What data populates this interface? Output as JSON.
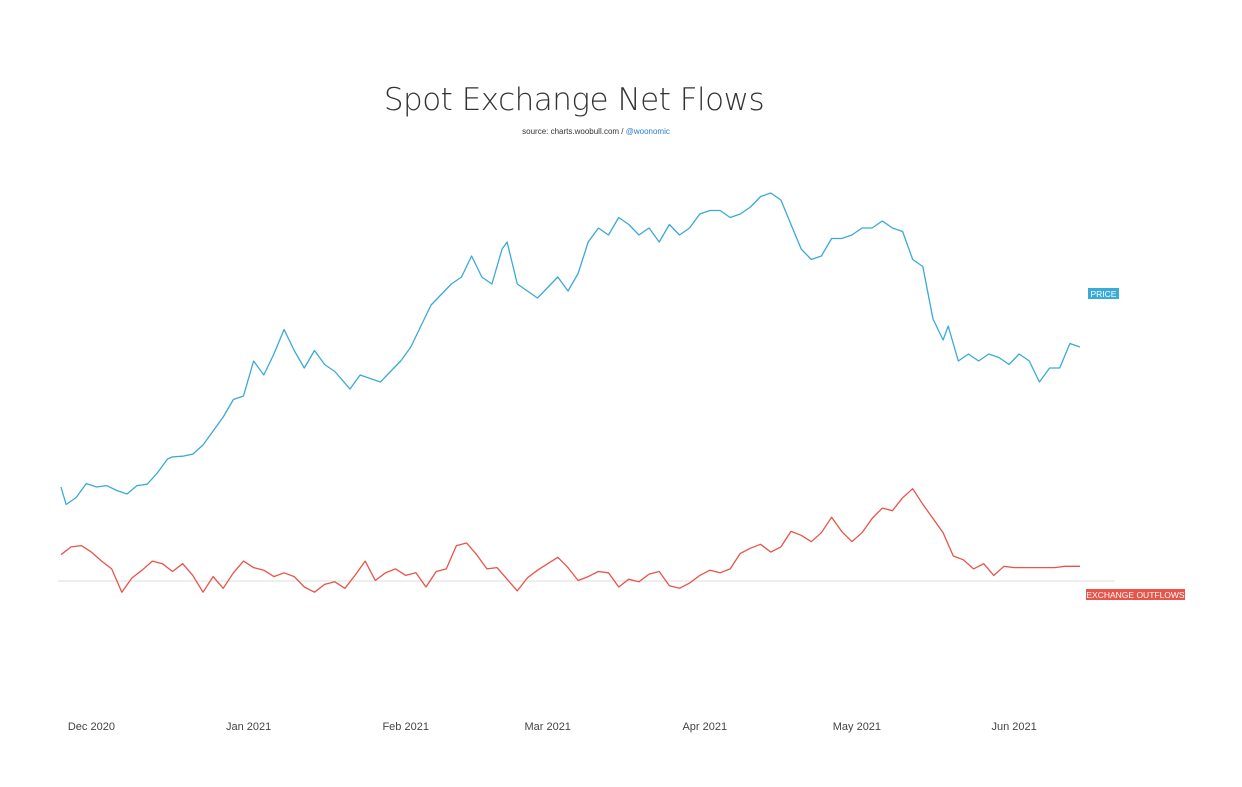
{
  "title": "Spot Exchange Net Flows",
  "subtitle": {
    "source_prefix": "source: charts.woobull.com /",
    "handle": "@woonomic"
  },
  "colors": {
    "price": "#3aaad8",
    "outflows": "#e8534a",
    "zero_line": "#dddddd",
    "axis_text": "#444444"
  },
  "chart_data": {
    "type": "line",
    "title": "Spot Exchange Net Flows",
    "x_range": [
      "2020-11-25",
      "2021-06-14"
    ],
    "x_ticks": [
      {
        "date": "2020-12-01",
        "label": "Dec 2020"
      },
      {
        "date": "2021-01-01",
        "label": "Jan 2021"
      },
      {
        "date": "2021-02-01",
        "label": "Feb 2021"
      },
      {
        "date": "2021-03-01",
        "label": "Mar 2021"
      },
      {
        "date": "2021-04-01",
        "label": "Apr 2021"
      },
      {
        "date": "2021-05-01",
        "label": "May 2021"
      },
      {
        "date": "2021-06-01",
        "label": "Jun 2021"
      }
    ],
    "grid": false,
    "legend": "series labels at right end of each line",
    "series": [
      {
        "name": "PRICE",
        "color": "#3aaad8",
        "y_range": [
          15000,
          66000
        ],
        "x": [
          "2020-11-25",
          "2020-11-26",
          "2020-11-28",
          "2020-11-30",
          "2020-12-02",
          "2020-12-04",
          "2020-12-06",
          "2020-12-08",
          "2020-12-10",
          "2020-12-12",
          "2020-12-14",
          "2020-12-16",
          "2020-12-17",
          "2020-12-19",
          "2020-12-21",
          "2020-12-23",
          "2020-12-25",
          "2020-12-27",
          "2020-12-29",
          "2020-12-31",
          "2021-01-02",
          "2021-01-04",
          "2021-01-06",
          "2021-01-08",
          "2021-01-10",
          "2021-01-12",
          "2021-01-14",
          "2021-01-16",
          "2021-01-18",
          "2021-01-21",
          "2021-01-23",
          "2021-01-25",
          "2021-01-27",
          "2021-01-29",
          "2021-01-31",
          "2021-02-02",
          "2021-02-04",
          "2021-02-06",
          "2021-02-08",
          "2021-02-10",
          "2021-02-12",
          "2021-02-14",
          "2021-02-16",
          "2021-02-18",
          "2021-02-20",
          "2021-02-21",
          "2021-02-23",
          "2021-02-25",
          "2021-02-27",
          "2021-03-01",
          "2021-03-03",
          "2021-03-05",
          "2021-03-07",
          "2021-03-09",
          "2021-03-11",
          "2021-03-13",
          "2021-03-15",
          "2021-03-17",
          "2021-03-19",
          "2021-03-21",
          "2021-03-23",
          "2021-03-25",
          "2021-03-27",
          "2021-03-29",
          "2021-03-31",
          "2021-04-02",
          "2021-04-04",
          "2021-04-06",
          "2021-04-08",
          "2021-04-10",
          "2021-04-12",
          "2021-04-14",
          "2021-04-16",
          "2021-04-18",
          "2021-04-20",
          "2021-04-22",
          "2021-04-24",
          "2021-04-26",
          "2021-04-28",
          "2021-04-30",
          "2021-05-02",
          "2021-05-04",
          "2021-05-06",
          "2021-05-08",
          "2021-05-10",
          "2021-05-12",
          "2021-05-14",
          "2021-05-16",
          "2021-05-18",
          "2021-05-19",
          "2021-05-21",
          "2021-05-23",
          "2021-05-25",
          "2021-05-27",
          "2021-05-29",
          "2021-05-31",
          "2021-06-02",
          "2021-06-04",
          "2021-06-06",
          "2021-06-08",
          "2021-06-10",
          "2021-06-12",
          "2021-06-14"
        ],
        "y": [
          19000,
          16500,
          17500,
          19500,
          19000,
          19200,
          18500,
          18000,
          19200,
          19400,
          21000,
          23000,
          23300,
          23400,
          23700,
          25000,
          27000,
          29000,
          31500,
          32000,
          37000,
          35000,
          38000,
          41500,
          38500,
          36000,
          38500,
          36500,
          35500,
          33000,
          35000,
          34500,
          34000,
          35500,
          37000,
          39000,
          42000,
          45000,
          46500,
          48000,
          49000,
          52000,
          49000,
          48000,
          53000,
          54000,
          48000,
          47000,
          46000,
          47500,
          49000,
          47000,
          49500,
          54000,
          56000,
          55000,
          57500,
          56500,
          55000,
          56000,
          54000,
          56500,
          55000,
          56000,
          58000,
          58500,
          58500,
          57500,
          58000,
          59000,
          60500,
          61000,
          60000,
          56500,
          53000,
          51500,
          52000,
          54500,
          54500,
          55000,
          56000,
          56000,
          57000,
          56000,
          55500,
          51500,
          50500,
          43000,
          40000,
          42000,
          37000,
          38000,
          37000,
          38000,
          37500,
          36500,
          38000,
          37000,
          34000,
          36000,
          36000,
          39500,
          39000
        ]
      },
      {
        "name": "EXCHANGE OUTFLOWS",
        "color": "#e8534a",
        "y_range": [
          -300000,
          400000
        ],
        "x": [
          "2020-11-25",
          "2020-11-27",
          "2020-11-29",
          "2020-12-01",
          "2020-12-03",
          "2020-12-05",
          "2020-12-07",
          "2020-12-09",
          "2020-12-11",
          "2020-12-13",
          "2020-12-15",
          "2020-12-17",
          "2020-12-19",
          "2020-12-21",
          "2020-12-23",
          "2020-12-25",
          "2020-12-27",
          "2020-12-29",
          "2020-12-31",
          "2021-01-02",
          "2021-01-04",
          "2021-01-06",
          "2021-01-08",
          "2021-01-10",
          "2021-01-12",
          "2021-01-14",
          "2021-01-16",
          "2021-01-18",
          "2021-01-20",
          "2021-01-22",
          "2021-01-24",
          "2021-01-26",
          "2021-01-28",
          "2021-01-30",
          "2021-02-01",
          "2021-02-03",
          "2021-02-05",
          "2021-02-07",
          "2021-02-09",
          "2021-02-11",
          "2021-02-13",
          "2021-02-15",
          "2021-02-17",
          "2021-02-19",
          "2021-02-21",
          "2021-02-23",
          "2021-02-25",
          "2021-02-27",
          "2021-03-01",
          "2021-03-03",
          "2021-03-05",
          "2021-03-07",
          "2021-03-09",
          "2021-03-11",
          "2021-03-13",
          "2021-03-15",
          "2021-03-17",
          "2021-03-19",
          "2021-03-21",
          "2021-03-23",
          "2021-03-25",
          "2021-03-27",
          "2021-03-29",
          "2021-03-31",
          "2021-04-02",
          "2021-04-04",
          "2021-04-06",
          "2021-04-08",
          "2021-04-10",
          "2021-04-12",
          "2021-04-14",
          "2021-04-16",
          "2021-04-18",
          "2021-04-20",
          "2021-04-22",
          "2021-04-24",
          "2021-04-26",
          "2021-04-28",
          "2021-04-30",
          "2021-05-02",
          "2021-05-04",
          "2021-05-06",
          "2021-05-08",
          "2021-05-10",
          "2021-05-12",
          "2021-05-14",
          "2021-05-16",
          "2021-05-18",
          "2021-05-20",
          "2021-05-22",
          "2021-05-24",
          "2021-05-26",
          "2021-05-28",
          "2021-05-30",
          "2021-06-01",
          "2021-06-03",
          "2021-06-05",
          "2021-06-07",
          "2021-06-09",
          "2021-06-11",
          "2021-06-14"
        ],
        "y": [
          30000,
          60000,
          65000,
          40000,
          5000,
          -25000,
          -115000,
          -60000,
          -30000,
          5000,
          -5000,
          -35000,
          -5000,
          -50000,
          -115000,
          -55000,
          -100000,
          -40000,
          5000,
          -20000,
          -30000,
          -55000,
          -40000,
          -55000,
          -95000,
          -115000,
          -85000,
          -75000,
          -100000,
          -50000,
          5000,
          -70000,
          -40000,
          -25000,
          -50000,
          -40000,
          -95000,
          -35000,
          -25000,
          65000,
          75000,
          30000,
          -25000,
          -20000,
          -65000,
          -110000,
          -60000,
          -30000,
          -5000,
          20000,
          -20000,
          -70000,
          -55000,
          -35000,
          -40000,
          -95000,
          -65000,
          -75000,
          -45000,
          -35000,
          -90000,
          -100000,
          -80000,
          -50000,
          -30000,
          -40000,
          -25000,
          35000,
          55000,
          70000,
          40000,
          60000,
          120000,
          105000,
          80000,
          115000,
          175000,
          120000,
          80000,
          115000,
          170000,
          210000,
          200000,
          250000,
          285000,
          225000,
          170000,
          115000,
          25000,
          10000,
          -25000,
          -5000,
          -50000,
          -15000,
          -20000,
          -20000,
          -20000,
          -20000,
          -20000,
          -15000,
          -15000
        ]
      }
    ]
  }
}
